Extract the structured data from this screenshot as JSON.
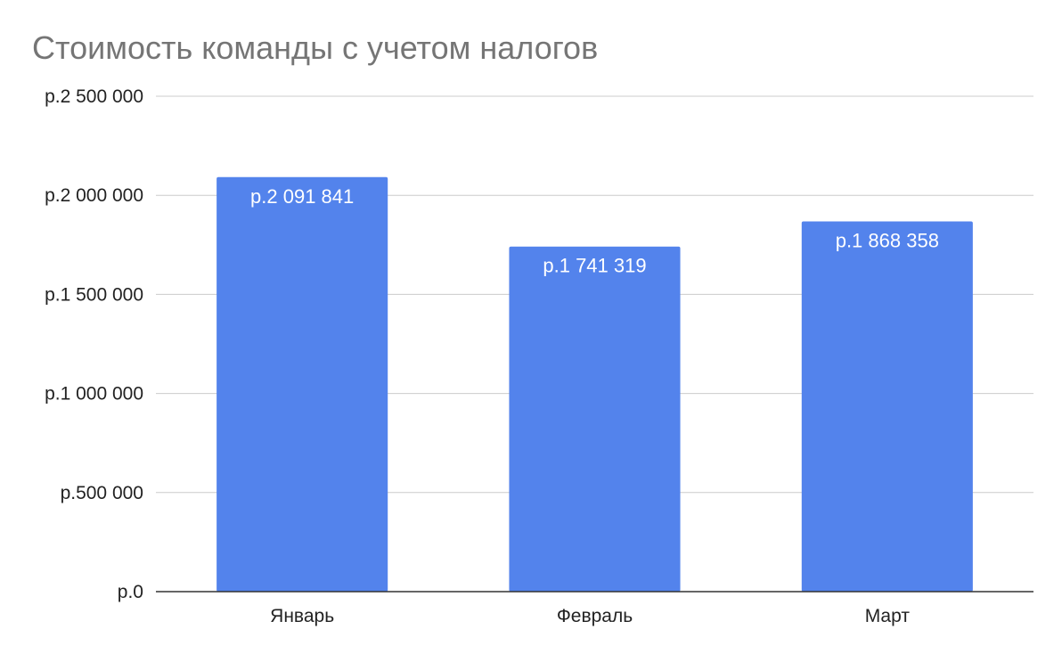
{
  "chart_data": {
    "type": "bar",
    "title": "Стоимость команды с учетом налогов",
    "categories": [
      "Январь",
      "Февраль",
      "Март"
    ],
    "series": [
      {
        "values": [
          2091841,
          1741319,
          1868358
        ],
        "data_labels": [
          "р.2 091 841",
          "р.1 741 319",
          "р.1 868 358"
        ],
        "color": "#5383ec"
      }
    ],
    "ylim": [
      0,
      2500000
    ],
    "yticks": [
      0,
      500000,
      1000000,
      1500000,
      2000000,
      2500000
    ],
    "ytick_labels": [
      "р.0",
      "р.500 000",
      "р.1 000 000",
      "р.1 500 000",
      "р.2 000 000",
      "р.2 500 000"
    ],
    "grid": true,
    "legend": "none"
  }
}
